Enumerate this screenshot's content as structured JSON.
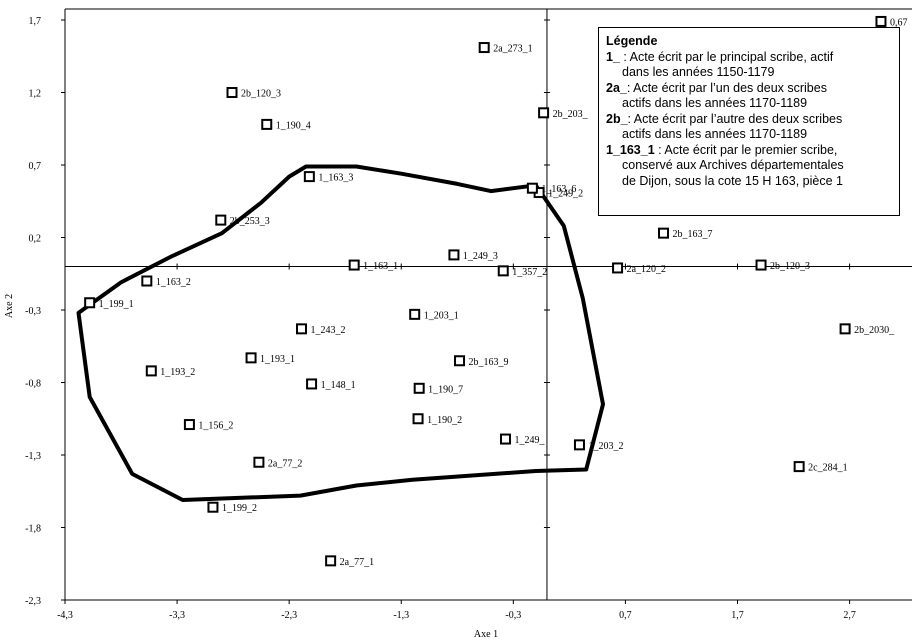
{
  "chart_data": {
    "type": "scatter",
    "xlabel": "Axe 1",
    "ylabel": "Axe 2",
    "xlim": [
      -4.3,
      2.9
    ],
    "ylim": [
      -2.3,
      1.7
    ],
    "x_ticks": [
      "-4,3",
      "-3,3",
      "-2,3",
      "-1,3",
      "-0,3",
      "0,7",
      "1,7",
      "2,7"
    ],
    "y_ticks": [
      "1,7",
      "1,2",
      "0,7",
      "0,2",
      "-0,3",
      "-0,8",
      "-1,3",
      "-1,8",
      "-2,3"
    ],
    "points": [
      {
        "label": "2a_273_1",
        "x": -0.56,
        "y": 1.51
      },
      {
        "label": "2b_120_3",
        "x": -2.81,
        "y": 1.2
      },
      {
        "label": "1_190_4",
        "x": -2.5,
        "y": 0.98
      },
      {
        "label": "2b_203_",
        "x": -0.03,
        "y": 1.06
      },
      {
        "label": "1_163_3",
        "x": -2.12,
        "y": 0.62
      },
      {
        "label": "1_249_2",
        "x": -0.07,
        "y": 0.51
      },
      {
        "label": "1_163_6",
        "x": -0.13,
        "y": 0.54
      },
      {
        "label": "2b_253_3",
        "x": -2.91,
        "y": 0.32
      },
      {
        "label": "2b_163_7",
        "x": 1.04,
        "y": 0.23
      },
      {
        "label": "1_249_3",
        "x": -0.83,
        "y": 0.08
      },
      {
        "label": "1_163_1",
        "x": -1.72,
        "y": 0.01
      },
      {
        "label": "2a_120_2",
        "x": 0.63,
        "y": -0.01
      },
      {
        "label": "2b_120_3",
        "x": 1.91,
        "y": 0.01
      },
      {
        "label": "1_357_2",
        "x": -0.39,
        "y": -0.03
      },
      {
        "label": "1_163_2",
        "x": -3.57,
        "y": -0.1
      },
      {
        "label": "1_199_1",
        "x": -4.08,
        "y": -0.25
      },
      {
        "label": "2b_2030_",
        "x": 2.66,
        "y": -0.43
      },
      {
        "label": "1_203_1",
        "x": -1.18,
        "y": -0.33
      },
      {
        "label": "1_243_2",
        "x": -2.19,
        "y": -0.43
      },
      {
        "label": "1_193_1",
        "x": -2.64,
        "y": -0.63
      },
      {
        "label": "2b_163_9",
        "x": -0.78,
        "y": -0.65
      },
      {
        "label": "1_193_2",
        "x": -3.53,
        "y": -0.72
      },
      {
        "label": "1_148_1",
        "x": -2.1,
        "y": -0.81
      },
      {
        "label": "1_190_7",
        "x": -1.14,
        "y": -0.84
      },
      {
        "label": "1_190_2",
        "x": -1.15,
        "y": -1.05
      },
      {
        "label": "1_156_2",
        "x": -3.19,
        "y": -1.09
      },
      {
        "label": "1_249_",
        "x": -0.37,
        "y": -1.19
      },
      {
        "label": "1_203_2",
        "x": 0.29,
        "y": -1.23
      },
      {
        "label": "2a_77_2",
        "x": -2.57,
        "y": -1.35
      },
      {
        "label": "2c_284_1",
        "x": 2.25,
        "y": -1.38
      },
      {
        "label": "1_199_2",
        "x": -2.98,
        "y": -1.66
      },
      {
        "label": "2a_77_1",
        "x": -1.93,
        "y": -2.03
      },
      {
        "label": "0,67",
        "x": 2.98,
        "y": 1.69
      }
    ],
    "hull": [
      [
        -4.18,
        -0.32
      ],
      [
        -3.8,
        -0.11
      ],
      [
        -3.35,
        0.07
      ],
      [
        -2.9,
        0.23
      ],
      [
        -2.55,
        0.44
      ],
      [
        -2.3,
        0.62
      ],
      [
        -2.15,
        0.69
      ],
      [
        -1.7,
        0.69
      ],
      [
        -1.3,
        0.64
      ],
      [
        -0.8,
        0.57
      ],
      [
        -0.5,
        0.52
      ],
      [
        -0.1,
        0.56
      ],
      [
        0.15,
        0.28
      ],
      [
        0.32,
        -0.22
      ],
      [
        0.5,
        -0.95
      ],
      [
        0.35,
        -1.4
      ],
      [
        -0.1,
        -1.41
      ],
      [
        -1.2,
        -1.47
      ],
      [
        -1.7,
        -1.51
      ],
      [
        -2.2,
        -1.58
      ],
      [
        -3.25,
        -1.61
      ],
      [
        -3.7,
        -1.43
      ],
      [
        -4.08,
        -0.9
      ]
    ],
    "grid": false,
    "legend_position": "top-right"
  },
  "legend": {
    "title": "Légende",
    "entries": [
      {
        "key": "1_",
        "text": " : Acte écrit par le principal scribe, actif",
        "cont": "dans les années 1150-1179"
      },
      {
        "key": "2a_",
        "text": ": Acte écrit par l’un des deux scribes",
        "cont": "actifs dans les années 1170-1189"
      },
      {
        "key": "2b_",
        "text": ": Acte écrit par l’autre des deux scribes",
        "cont": "actifs dans les années 1170-1189"
      },
      {
        "key": "1_163_1",
        "text": " : Acte écrit par le premier scribe,",
        "cont": "conservé aux Archives départementales\nde Dijon, sous la cote 15 H 163, pièce 1"
      }
    ]
  }
}
